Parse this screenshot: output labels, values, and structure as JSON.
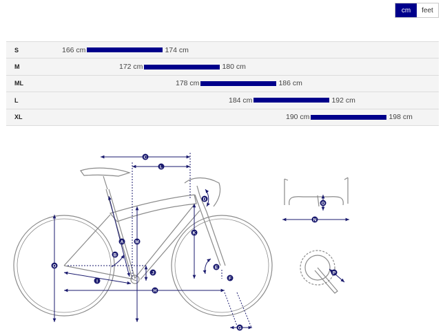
{
  "unit_toggle": {
    "options": [
      "cm",
      "feet"
    ],
    "selected": "cm"
  },
  "sizes": [
    {
      "label": "S",
      "min": "166 cm",
      "max": "174 cm"
    },
    {
      "label": "M",
      "min": "172 cm",
      "max": "180 cm"
    },
    {
      "label": "ML",
      "min": "178 cm",
      "max": "186 cm"
    },
    {
      "label": "L",
      "min": "184 cm",
      "max": "192 cm"
    },
    {
      "label": "XL",
      "min": "190 cm",
      "max": "198 cm"
    }
  ],
  "geometry_markers": [
    "A",
    "B",
    "C",
    "D",
    "E",
    "F",
    "G",
    "H",
    "I",
    "J",
    "K",
    "L",
    "M",
    "N",
    "O",
    "P"
  ],
  "colors": {
    "accent": "#00008b",
    "line": "#1a1a6e",
    "frame": "#8a8a8a"
  }
}
